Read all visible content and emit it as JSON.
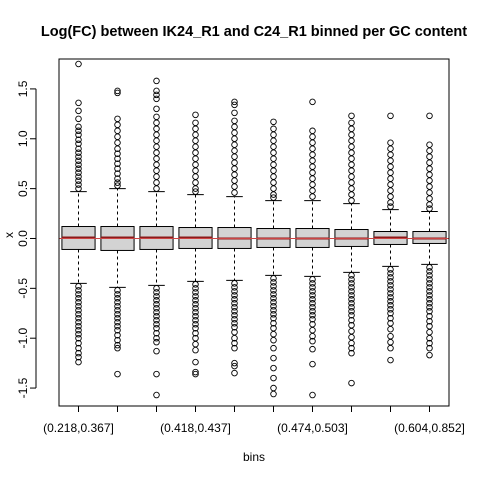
{
  "chart_data": {
    "type": "boxplot",
    "title": "Log(FC) between IK24_R1 and C24_R1 binned per GC content",
    "xlabel": "bins",
    "ylabel": "x",
    "ylim": [
      -1.68,
      1.8
    ],
    "yticks": [
      -1.5,
      -1.0,
      -0.5,
      0.0,
      0.5,
      1.0,
      1.5
    ],
    "ytick_labels": [
      "-1.5",
      "-1.0",
      "-0.5",
      "0.0",
      "0.5",
      "1.0",
      "1.5"
    ],
    "categories": [
      "(0.218,0.367]",
      "",
      "",
      "(0.418,0.437]",
      "",
      "(0.474,0.503]",
      "",
      "",
      "(0.604,0.852]",
      ""
    ],
    "tick_labels": [
      {
        "index": 0,
        "label": "(0.218,0.367]"
      },
      {
        "index": 3,
        "label": "(0.418,0.437]"
      },
      {
        "index": 6,
        "label": "(0.474,0.503]"
      },
      {
        "index": 9,
        "label": "(0.604,0.852]"
      }
    ],
    "reference_line": {
      "y": 0.0,
      "color": "#cc4444"
    },
    "box_fill": "#d3d3d3",
    "median_color": "#8b1a1a",
    "boxes": [
      {
        "q1": -0.11,
        "median": 0.01,
        "q3": 0.12,
        "whisker_low": -0.45,
        "whisker_high": 0.47,
        "outliers_high": [
          1.75,
          1.36,
          1.28,
          1.2,
          1.12,
          1.08,
          1.04,
          0.99,
          0.95,
          0.9,
          0.86,
          0.82,
          0.78,
          0.74,
          0.7,
          0.66,
          0.62,
          0.58,
          0.54,
          0.5
        ],
        "outliers_low": [
          -0.48,
          -0.52,
          -0.56,
          -0.6,
          -0.64,
          -0.68,
          -0.72,
          -0.76,
          -0.8,
          -0.84,
          -0.88,
          -0.92,
          -0.96,
          -1.0,
          -1.05,
          -1.1,
          -1.15,
          -1.19,
          -1.24
        ]
      },
      {
        "q1": -0.12,
        "median": 0.01,
        "q3": 0.12,
        "whisker_low": -0.49,
        "whisker_high": 0.5,
        "outliers_high": [
          1.48,
          1.46,
          1.2,
          1.14,
          1.08,
          1.02,
          0.96,
          0.9,
          0.85,
          0.8,
          0.75,
          0.7,
          0.65,
          0.6,
          0.56,
          0.53
        ],
        "outliers_low": [
          -0.52,
          -0.56,
          -0.6,
          -0.64,
          -0.68,
          -0.72,
          -0.76,
          -0.8,
          -0.84,
          -0.88,
          -0.92,
          -0.97,
          -1.02,
          -1.07,
          -1.1,
          -1.36
        ]
      },
      {
        "q1": -0.11,
        "median": 0.01,
        "q3": 0.12,
        "whisker_low": -0.47,
        "whisker_high": 0.47,
        "outliers_high": [
          1.58,
          1.48,
          1.44,
          1.4,
          1.3,
          1.22,
          1.16,
          1.1,
          1.04,
          0.98,
          0.92,
          0.86,
          0.8,
          0.74,
          0.68,
          0.62,
          0.56,
          0.5
        ],
        "outliers_low": [
          -0.5,
          -0.54,
          -0.58,
          -0.62,
          -0.66,
          -0.7,
          -0.74,
          -0.78,
          -0.82,
          -0.86,
          -0.9,
          -0.95,
          -1.0,
          -1.04,
          -1.13,
          -1.36,
          -1.57
        ]
      },
      {
        "q1": -0.1,
        "median": 0.01,
        "q3": 0.11,
        "whisker_low": -0.43,
        "whisker_high": 0.44,
        "outliers_high": [
          1.24,
          1.16,
          1.1,
          1.04,
          0.98,
          0.92,
          0.86,
          0.8,
          0.74,
          0.68,
          0.62,
          0.56,
          0.5,
          0.47
        ],
        "outliers_low": [
          -0.46,
          -0.5,
          -0.54,
          -0.58,
          -0.62,
          -0.66,
          -0.7,
          -0.74,
          -0.78,
          -0.82,
          -0.86,
          -0.9,
          -0.95,
          -1.0,
          -1.06,
          -1.12,
          -1.24,
          -1.34,
          -1.36
        ]
      },
      {
        "q1": -0.1,
        "median": 0.0,
        "q3": 0.11,
        "whisker_low": -0.42,
        "whisker_high": 0.42,
        "outliers_high": [
          1.37,
          1.34,
          1.26,
          1.18,
          1.12,
          1.06,
          1.0,
          0.94,
          0.88,
          0.82,
          0.76,
          0.7,
          0.64,
          0.58,
          0.52,
          0.46
        ],
        "outliers_low": [
          -0.45,
          -0.49,
          -0.53,
          -0.57,
          -0.61,
          -0.65,
          -0.69,
          -0.73,
          -0.77,
          -0.81,
          -0.85,
          -0.89,
          -0.94,
          -1.0,
          -1.05,
          -1.1,
          -1.25,
          -1.28,
          -1.35
        ]
      },
      {
        "q1": -0.09,
        "median": 0.0,
        "q3": 0.1,
        "whisker_low": -0.37,
        "whisker_high": 0.38,
        "outliers_high": [
          1.17,
          1.1,
          1.04,
          0.98,
          0.92,
          0.86,
          0.8,
          0.74,
          0.68,
          0.62,
          0.56,
          0.5,
          0.44,
          0.41
        ],
        "outliers_low": [
          -0.4,
          -0.44,
          -0.48,
          -0.52,
          -0.56,
          -0.6,
          -0.64,
          -0.68,
          -0.72,
          -0.76,
          -0.8,
          -0.85,
          -0.9,
          -0.96,
          -1.02,
          -1.1,
          -1.2,
          -1.3,
          -1.4,
          -1.5,
          -1.56
        ]
      },
      {
        "q1": -0.09,
        "median": 0.0,
        "q3": 0.1,
        "whisker_low": -0.38,
        "whisker_high": 0.38,
        "outliers_high": [
          1.37,
          1.08,
          1.02,
          0.96,
          0.9,
          0.84,
          0.78,
          0.72,
          0.66,
          0.6,
          0.54,
          0.48,
          0.42
        ],
        "outliers_low": [
          -0.41,
          -0.45,
          -0.49,
          -0.53,
          -0.57,
          -0.61,
          -0.65,
          -0.69,
          -0.73,
          -0.77,
          -0.81,
          -0.86,
          -0.92,
          -0.98,
          -1.03,
          -1.11,
          -1.26,
          -1.57
        ]
      },
      {
        "q1": -0.08,
        "median": 0.0,
        "q3": 0.09,
        "whisker_low": -0.34,
        "whisker_high": 0.35,
        "outliers_high": [
          1.23,
          1.16,
          1.1,
          1.04,
          0.98,
          0.92,
          0.86,
          0.8,
          0.74,
          0.68,
          0.62,
          0.56,
          0.5,
          0.44,
          0.38
        ],
        "outliers_low": [
          -0.37,
          -0.41,
          -0.45,
          -0.49,
          -0.53,
          -0.57,
          -0.61,
          -0.65,
          -0.69,
          -0.73,
          -0.77,
          -0.82,
          -0.87,
          -0.93,
          -0.99,
          -1.05,
          -1.1,
          -1.15,
          -1.45
        ]
      },
      {
        "q1": -0.06,
        "median": 0.01,
        "q3": 0.07,
        "whisker_low": -0.28,
        "whisker_high": 0.29,
        "outliers_high": [
          1.23,
          0.96,
          0.9,
          0.84,
          0.78,
          0.72,
          0.66,
          0.6,
          0.54,
          0.48,
          0.42,
          0.36,
          0.32
        ],
        "outliers_low": [
          -0.31,
          -0.35,
          -0.39,
          -0.43,
          -0.47,
          -0.51,
          -0.55,
          -0.59,
          -0.63,
          -0.67,
          -0.71,
          -0.75,
          -0.8,
          -0.85,
          -0.91,
          -0.98,
          -1.04,
          -1.1,
          -1.22
        ]
      },
      {
        "q1": -0.05,
        "median": 0.0,
        "q3": 0.07,
        "whisker_low": -0.26,
        "whisker_high": 0.27,
        "outliers_high": [
          1.23,
          0.94,
          0.88,
          0.82,
          0.76,
          0.7,
          0.64,
          0.58,
          0.52,
          0.46,
          0.4,
          0.34,
          0.3
        ],
        "outliers_low": [
          -0.29,
          -0.33,
          -0.37,
          -0.41,
          -0.45,
          -0.49,
          -0.53,
          -0.57,
          -0.61,
          -0.65,
          -0.69,
          -0.73,
          -0.78,
          -0.83,
          -0.88,
          -0.94,
          -1.0,
          -1.05,
          -1.1,
          -1.17
        ]
      }
    ]
  }
}
